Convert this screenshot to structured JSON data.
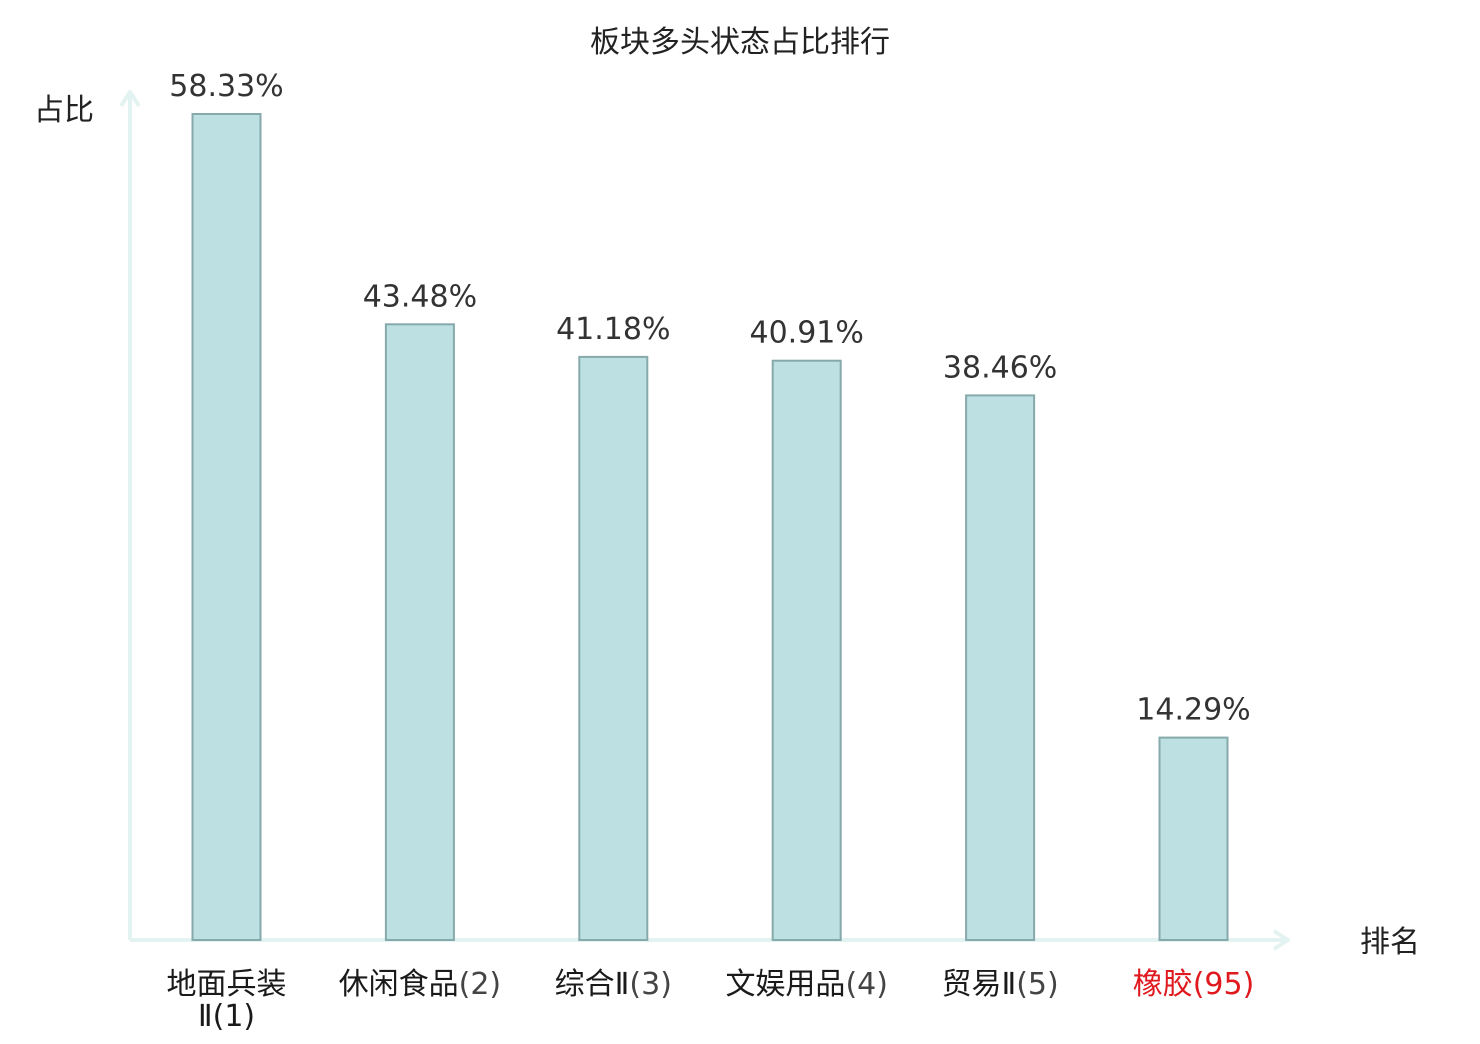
{
  "chart_data": {
    "type": "bar",
    "title": "板块多头状态占比排行",
    "ylabel": "占比",
    "xlabel": "排名",
    "ylim": [
      0,
      60
    ],
    "grid": false,
    "legend": "none",
    "categories": [
      {
        "name": "地面兵装Ⅱ",
        "rank": "(1)",
        "highlight": false
      },
      {
        "name": "休闲食品",
        "rank": "(2)",
        "highlight": false
      },
      {
        "name": "综合Ⅱ",
        "rank": "(3)",
        "highlight": false
      },
      {
        "name": "文娱用品",
        "rank": "(4)",
        "highlight": false
      },
      {
        "name": "贸易Ⅱ",
        "rank": "(5)",
        "highlight": false
      },
      {
        "name": "橡胶",
        "rank": "(95)",
        "highlight": true
      }
    ],
    "values": [
      58.33,
      43.48,
      41.18,
      40.91,
      38.46,
      14.29
    ],
    "value_labels": [
      "58.33%",
      "43.48%",
      "41.18%",
      "40.91%",
      "38.46%",
      "14.29%"
    ],
    "colors": {
      "bar_fill": "#bde0e3",
      "bar_stroke": "#86a9ab",
      "axis": "#e2f3f1",
      "highlight_text": "#e0191e",
      "rank_text": "#444444"
    }
  }
}
